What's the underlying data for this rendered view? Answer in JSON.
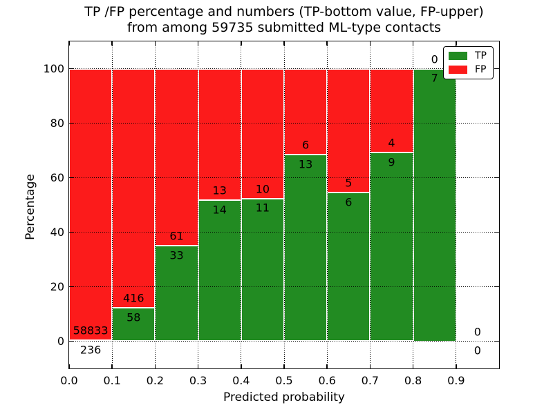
{
  "chart_data": {
    "type": "bar",
    "variant": "stacked-percentage",
    "title_lines": [
      "TP /FP percentage and numbers (TP-bottom value, FP-upper)",
      "from among 59735 submitted ML-type contacts"
    ],
    "xlabel": "Predicted probability",
    "ylabel": "Percentage",
    "xlim": [
      0.0,
      1.0
    ],
    "ylim": [
      -10,
      110
    ],
    "xticks": {
      "values": [
        0.0,
        0.1,
        0.2,
        0.3,
        0.4,
        0.5,
        0.6,
        0.7,
        0.8,
        0.9
      ],
      "labels": [
        "0.0",
        "0.1",
        "0.2",
        "0.3",
        "0.4",
        "0.5",
        "0.6",
        "0.7",
        "0.8",
        "0.9"
      ]
    },
    "yticks": {
      "values": [
        0,
        20,
        40,
        60,
        80,
        100
      ],
      "labels": [
        "0",
        "20",
        "40",
        "60",
        "80",
        "100"
      ]
    },
    "grid": {
      "style": "dotted",
      "color": "#000000"
    },
    "bin_edges": [
      0.0,
      0.1,
      0.2,
      0.3,
      0.4,
      0.5,
      0.6,
      0.7,
      0.8,
      0.9,
      1.0
    ],
    "series": [
      {
        "name": "TP",
        "color": "#228B22",
        "values": [
          236,
          58,
          33,
          14,
          11,
          13,
          6,
          9,
          7,
          0
        ]
      },
      {
        "name": "FP",
        "color": "#FC1B1B",
        "values": [
          58833,
          416,
          61,
          13,
          10,
          6,
          5,
          4,
          0,
          0
        ]
      }
    ],
    "bar_edge_color": "#ffffff",
    "total_contacts": 59735,
    "legend": {
      "position": "upper right",
      "items": [
        {
          "label": "TP",
          "color": "#228B22"
        },
        {
          "label": "FP",
          "color": "#FC1B1B"
        }
      ]
    }
  }
}
